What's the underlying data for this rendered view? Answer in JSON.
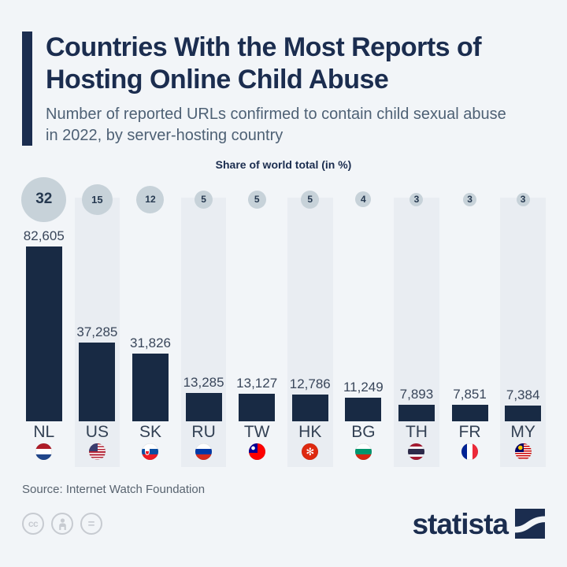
{
  "header": {
    "title": "Countries With the Most Reports of Hosting Online Child Abuse",
    "subtitle": "Number of reported URLs confirmed to contain child sexual abuse in 2022, by server-hosting country"
  },
  "chart_data": {
    "type": "bar",
    "title": "Countries With the Most Reports of Hosting Online Child Abuse",
    "axis_note": "Share of world total (in %)",
    "categories": [
      "NL",
      "US",
      "SK",
      "RU",
      "TW",
      "HK",
      "BG",
      "TH",
      "FR",
      "MY"
    ],
    "values": [
      82605,
      37285,
      31826,
      13285,
      13127,
      12786,
      11249,
      7893,
      7851,
      7384
    ],
    "value_labels": [
      "82,605",
      "37,285",
      "31,826",
      "13,285",
      "13,127",
      "12,786",
      "11,249",
      "7,893",
      "7,851",
      "7,384"
    ],
    "shares_percent": [
      32,
      15,
      12,
      5,
      5,
      5,
      4,
      3,
      3,
      3
    ],
    "ylim": [
      0,
      82605
    ],
    "bar_color_hex": "#182a44",
    "bubble_color_hex": "#c7d2d9",
    "stripe_color_hex": "#e9edf2",
    "legend_position": "none",
    "grid": false
  },
  "footer": {
    "source": "Source: Internet Watch Foundation",
    "brand": "statista",
    "license_icons": {
      "cc_label": "cc",
      "attribution_icon": "person-icon",
      "nd_label": "="
    }
  },
  "colors": {
    "background": "#f2f5f8",
    "accent_navy": "#1b2d4f",
    "subtitle_gray": "#4e6175"
  }
}
